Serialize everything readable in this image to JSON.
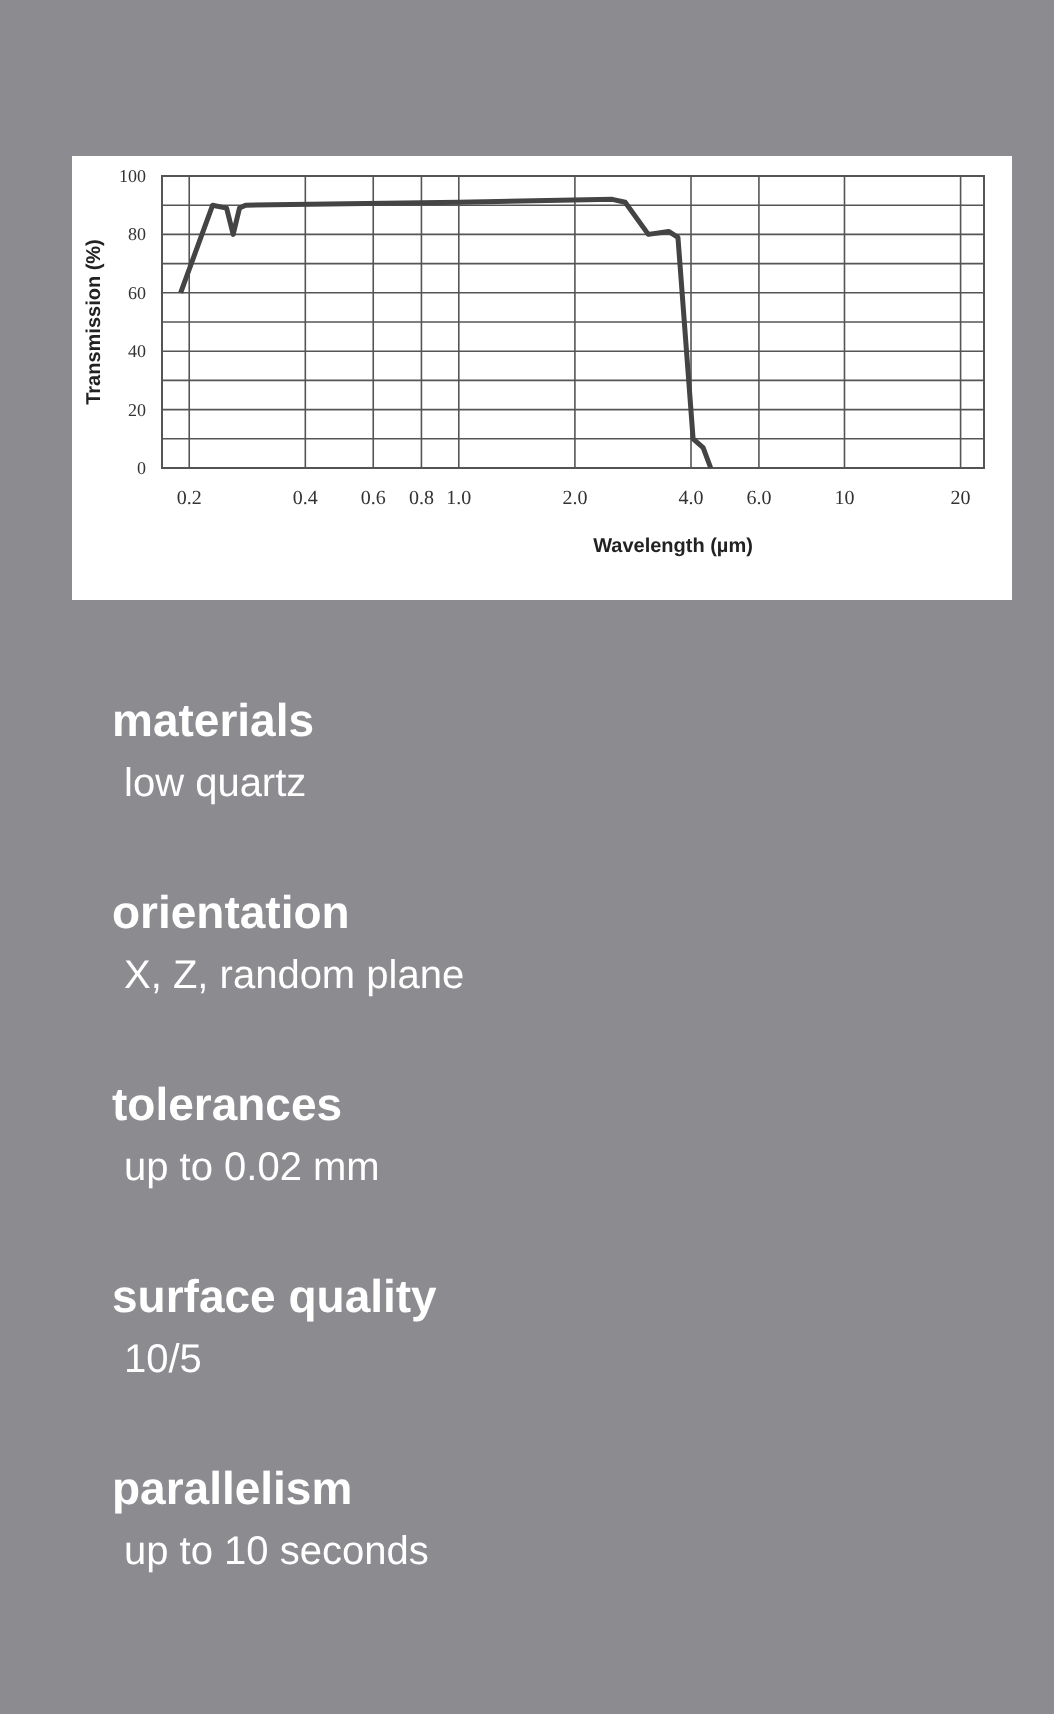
{
  "chart_data": [
    {
      "type": "line",
      "xlabel": "Wavelength (µm)",
      "ylabel": "Transmission (%)",
      "log": "x",
      "xlim": [
        0.17,
        23
      ],
      "ylim": [
        0,
        100
      ],
      "xticks": [
        {
          "value": 0.2,
          "label": "0.2"
        },
        {
          "value": 0.4,
          "label": "0.4"
        },
        {
          "value": 0.6,
          "label": "0.6"
        },
        {
          "value": 0.8,
          "label": "0.8"
        },
        {
          "value": 1,
          "label": "1.0"
        },
        {
          "value": 2,
          "label": "2.0"
        },
        {
          "value": 4,
          "label": "4.0"
        },
        {
          "value": 6,
          "label": "6.0"
        },
        10,
        20
      ],
      "yticks": [
        0,
        {
          "value": 10,
          "label": null
        },
        20,
        {
          "value": 30,
          "label": null
        },
        40,
        {
          "value": 50,
          "label": null
        },
        60,
        {
          "value": 70,
          "label": null
        },
        80,
        {
          "value": 90,
          "label": null
        },
        100
      ],
      "grid": true,
      "line_style": "solid",
      "series": [
        {
          "color": "#444444",
          "x": [
            0.19,
            0.23,
            0.25,
            0.26,
            0.27,
            0.28,
            1.0,
            2.5,
            2.7,
            3.1,
            3.5,
            3.7,
            4.05,
            4.3,
            4.5
          ],
          "values": [
            60,
            90,
            89,
            80,
            89,
            90,
            91,
            92,
            91,
            80,
            81,
            79,
            10,
            7,
            0
          ]
        }
      ]
    },
    {
      "type": "other",
      "annotations": [
        "materials",
        "low quartz",
        "orientation",
        "X, Z, random plane",
        "tolerances",
        "up to 0.02 mm",
        "surface quality",
        "10/5",
        "parallelism",
        "up to 10 seconds"
      ]
    }
  ]
}
